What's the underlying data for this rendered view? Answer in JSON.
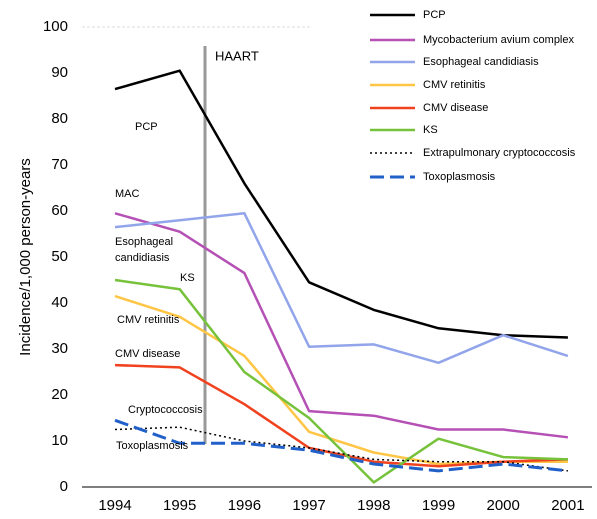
{
  "chart_data": {
    "type": "line",
    "y_label": "Incidence/1,000 person-years",
    "categories": [
      "1994",
      "1995",
      "1996",
      "1997",
      "1998",
      "1999",
      "2000",
      "2001"
    ],
    "ylim": [
      0,
      100
    ],
    "yticks": [
      0,
      10,
      20,
      30,
      40,
      50,
      60,
      70,
      80,
      90,
      100
    ],
    "series": [
      {
        "name": "PCP",
        "color": "#000000",
        "style": "solid",
        "values": [
          86.5,
          90.5,
          66,
          44.5,
          38.5,
          34.5,
          33,
          32.5
        ]
      },
      {
        "name": "Mycobacterium avium complex",
        "color": "#b550b5",
        "style": "solid",
        "values": [
          59.5,
          55.5,
          46.5,
          16.5,
          15.5,
          12.5,
          12.5,
          10.8
        ]
      },
      {
        "name": "Esophageal candidiasis",
        "color": "#92a5ea",
        "style": "solid",
        "values": [
          56.5,
          58,
          59.5,
          30.5,
          31,
          27,
          33,
          28.5
        ]
      },
      {
        "name": "CMV retinitis",
        "color": "#ffc545",
        "style": "solid",
        "values": [
          41.5,
          37,
          28.5,
          12,
          7.5,
          5,
          5.5,
          5.5
        ]
      },
      {
        "name": "CMV disease",
        "color": "#f0421f",
        "style": "solid",
        "values": [
          26.5,
          26,
          18,
          8.5,
          5.5,
          4.5,
          5.5,
          6
        ]
      },
      {
        "name": "KS",
        "color": "#76c23b",
        "style": "solid",
        "values": [
          45,
          43,
          25,
          15,
          1,
          10.5,
          6.5,
          6
        ]
      },
      {
        "name": "Extrapulmonary cryptococcosis",
        "color": "#000000",
        "style": "dotted",
        "values": [
          12.5,
          13,
          10,
          8.5,
          6,
          5.5,
          5.5,
          3.5
        ]
      },
      {
        "name": "Toxoplasmosis",
        "color": "#2060c8",
        "style": "dashed",
        "values": [
          14.5,
          9.5,
          9.5,
          8,
          5,
          3.5,
          5,
          3.5
        ]
      }
    ],
    "haart_label": "HAART",
    "annotations": [
      "PCP",
      "MAC",
      "Esophageal",
      "candidiasis",
      "KS",
      "CMV retinitis",
      "CMV disease",
      "Cryptococcosis",
      "Toxoplasmosis"
    ]
  }
}
